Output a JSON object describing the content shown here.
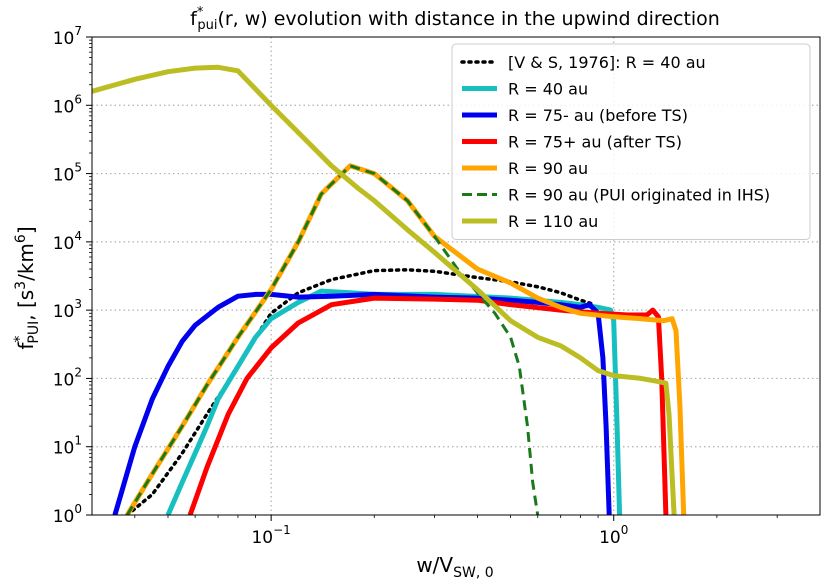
{
  "chart_data": {
    "type": "line",
    "title": "f*pui(r, w) evolution with distance in the upwind direction",
    "title_parts": {
      "base": "f",
      "sup": "*",
      "sub": "pui",
      "rest": "(r, w) evolution with distance in the upwind direction"
    },
    "xlabel": "w/V_SW,0",
    "xlabel_parts": {
      "base": "w/V",
      "sub": "SW, 0"
    },
    "ylabel": "f*_PUI, [s^3/km^6]",
    "ylabel_parts": {
      "base": "f",
      "sup": "*",
      "sub": "PUI",
      "mid": ", [s",
      "sup2": "3",
      "mid2": "/km",
      "sup3": "6",
      "end": "]"
    },
    "xscale": "log",
    "yscale": "log",
    "xlim": [
      0.03,
      4.0
    ],
    "ylim": [
      1,
      10000000
    ],
    "grid": true,
    "legend_position": "top-right",
    "x_ticks": [
      {
        "value": 0.1,
        "base": "10",
        "exp": "−1"
      },
      {
        "value": 1.0,
        "base": "10",
        "exp": "0"
      }
    ],
    "y_ticks": [
      {
        "value": 1,
        "base": "10",
        "exp": "0"
      },
      {
        "value": 10,
        "base": "10",
        "exp": "1"
      },
      {
        "value": 100,
        "base": "10",
        "exp": "2"
      },
      {
        "value": 1000,
        "base": "10",
        "exp": "3"
      },
      {
        "value": 10000,
        "base": "10",
        "exp": "4"
      },
      {
        "value": 100000,
        "base": "10",
        "exp": "5"
      },
      {
        "value": 1000000,
        "base": "10",
        "exp": "6"
      },
      {
        "value": 10000000,
        "base": "10",
        "exp": "7"
      }
    ],
    "series": [
      {
        "name": "[V & S, 1976]: R = 40 au",
        "color": "#000000",
        "style": "dotted",
        "points": [
          [
            0.038,
            1
          ],
          [
            0.045,
            2
          ],
          [
            0.055,
            8
          ],
          [
            0.065,
            30
          ],
          [
            0.075,
            90
          ],
          [
            0.085,
            250
          ],
          [
            0.1,
            900
          ],
          [
            0.12,
            1800
          ],
          [
            0.15,
            2800
          ],
          [
            0.2,
            3800
          ],
          [
            0.25,
            3900
          ],
          [
            0.3,
            3700
          ],
          [
            0.4,
            3000
          ],
          [
            0.5,
            2600
          ],
          [
            0.6,
            2200
          ],
          [
            0.7,
            1800
          ],
          [
            0.8,
            1400
          ],
          [
            0.88,
            1200
          ]
        ]
      },
      {
        "name": "R = 40 au",
        "color": "#17bfc0",
        "style": "solid",
        "points": [
          [
            0.05,
            1
          ],
          [
            0.055,
            3
          ],
          [
            0.06,
            8
          ],
          [
            0.065,
            20
          ],
          [
            0.07,
            50
          ],
          [
            0.08,
            150
          ],
          [
            0.09,
            400
          ],
          [
            0.1,
            750
          ],
          [
            0.12,
            1300
          ],
          [
            0.14,
            1900
          ],
          [
            0.17,
            1800
          ],
          [
            0.2,
            1700
          ],
          [
            0.3,
            1700
          ],
          [
            0.5,
            1500
          ],
          [
            0.7,
            1300
          ],
          [
            0.8,
            1200
          ],
          [
            0.9,
            1100
          ],
          [
            0.98,
            1000
          ],
          [
            1.0,
            700
          ],
          [
            1.02,
            30
          ],
          [
            1.04,
            1
          ]
        ]
      },
      {
        "name": "R = 75- au (before TS)",
        "color": "#0000ee",
        "style": "solid",
        "points": [
          [
            0.035,
            1
          ],
          [
            0.04,
            10
          ],
          [
            0.045,
            50
          ],
          [
            0.05,
            150
          ],
          [
            0.055,
            350
          ],
          [
            0.06,
            600
          ],
          [
            0.07,
            1100
          ],
          [
            0.08,
            1600
          ],
          [
            0.09,
            1700
          ],
          [
            0.1,
            1700
          ],
          [
            0.12,
            1550
          ],
          [
            0.15,
            1600
          ],
          [
            0.2,
            1700
          ],
          [
            0.3,
            1550
          ],
          [
            0.4,
            1500
          ],
          [
            0.5,
            1400
          ],
          [
            0.6,
            1300
          ],
          [
            0.7,
            1200
          ],
          [
            0.8,
            1100
          ],
          [
            0.85,
            1200
          ],
          [
            0.9,
            900
          ],
          [
            0.93,
            200
          ],
          [
            0.95,
            20
          ],
          [
            0.97,
            1
          ]
        ]
      },
      {
        "name": "R = 75+ au (after TS)",
        "color": "#ff0000",
        "style": "solid",
        "points": [
          [
            0.058,
            1
          ],
          [
            0.065,
            5
          ],
          [
            0.075,
            30
          ],
          [
            0.085,
            100
          ],
          [
            0.1,
            280
          ],
          [
            0.12,
            650
          ],
          [
            0.15,
            1200
          ],
          [
            0.2,
            1500
          ],
          [
            0.3,
            1450
          ],
          [
            0.4,
            1400
          ],
          [
            0.5,
            1200
          ],
          [
            0.7,
            1000
          ],
          [
            0.9,
            900
          ],
          [
            1.1,
            850
          ],
          [
            1.25,
            850
          ],
          [
            1.3,
            1000
          ],
          [
            1.35,
            800
          ],
          [
            1.38,
            100
          ],
          [
            1.42,
            1
          ]
        ]
      },
      {
        "name": "R = 90 au",
        "color": "#ffa500",
        "style": "solid",
        "points": [
          [
            0.038,
            1
          ],
          [
            0.045,
            4
          ],
          [
            0.055,
            20
          ],
          [
            0.065,
            80
          ],
          [
            0.08,
            400
          ],
          [
            0.1,
            2000
          ],
          [
            0.12,
            10000
          ],
          [
            0.14,
            50000
          ],
          [
            0.17,
            130000
          ],
          [
            0.2,
            100000
          ],
          [
            0.25,
            40000
          ],
          [
            0.3,
            12000
          ],
          [
            0.4,
            4000
          ],
          [
            0.5,
            2500
          ],
          [
            0.6,
            1500
          ],
          [
            0.7,
            1100
          ],
          [
            0.8,
            900
          ],
          [
            1.0,
            800
          ],
          [
            1.2,
            750
          ],
          [
            1.4,
            700
          ],
          [
            1.48,
            750
          ],
          [
            1.52,
            500
          ],
          [
            1.56,
            40
          ],
          [
            1.6,
            1
          ]
        ]
      },
      {
        "name": "R = 90 au (PUI originated in IHS)",
        "color": "#1a7a1a",
        "style": "dashed",
        "points": [
          [
            0.038,
            1
          ],
          [
            0.045,
            4
          ],
          [
            0.055,
            20
          ],
          [
            0.065,
            80
          ],
          [
            0.08,
            400
          ],
          [
            0.1,
            2000
          ],
          [
            0.12,
            10000
          ],
          [
            0.14,
            50000
          ],
          [
            0.17,
            130000
          ],
          [
            0.2,
            100000
          ],
          [
            0.25,
            40000
          ],
          [
            0.3,
            12000
          ],
          [
            0.35,
            4000
          ],
          [
            0.4,
            1800
          ],
          [
            0.45,
            900
          ],
          [
            0.5,
            400
          ],
          [
            0.53,
            150
          ],
          [
            0.56,
            20
          ],
          [
            0.58,
            3
          ],
          [
            0.6,
            1
          ]
        ]
      },
      {
        "name": "R = 110 au",
        "color": "#bcbd22",
        "style": "solid",
        "points": [
          [
            0.03,
            1600000
          ],
          [
            0.04,
            2400000
          ],
          [
            0.05,
            3100000
          ],
          [
            0.06,
            3500000
          ],
          [
            0.07,
            3600000
          ],
          [
            0.08,
            3200000
          ],
          [
            0.1,
            1000000
          ],
          [
            0.12,
            400000
          ],
          [
            0.15,
            130000
          ],
          [
            0.18,
            60000
          ],
          [
            0.2,
            40000
          ],
          [
            0.25,
            15000
          ],
          [
            0.3,
            7000
          ],
          [
            0.4,
            2000
          ],
          [
            0.5,
            700
          ],
          [
            0.6,
            400
          ],
          [
            0.7,
            300
          ],
          [
            0.8,
            200
          ],
          [
            0.9,
            130
          ],
          [
            1.0,
            110
          ],
          [
            1.2,
            100
          ],
          [
            1.35,
            90
          ],
          [
            1.42,
            85
          ],
          [
            1.45,
            30
          ],
          [
            1.5,
            1
          ]
        ]
      }
    ]
  }
}
